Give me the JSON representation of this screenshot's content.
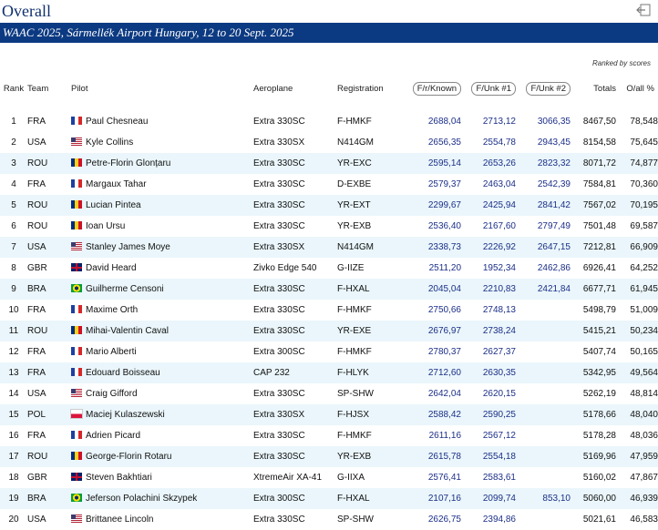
{
  "page": {
    "title": "Overall",
    "banner": "WAAC 2025, Sármellék Airport Hungary, 12 to 20 Sept. 2025",
    "ranked_note": "Ranked by scores"
  },
  "columns": {
    "rank": "Rank",
    "team": "Team",
    "pilot": "Pilot",
    "aeroplane": "Aeroplane",
    "registration": "Registration",
    "fknown": "F/r/Known",
    "funk1": "F/Unk #1",
    "funk2": "F/Unk #2",
    "totals": "Totals",
    "overall": "O/all %"
  },
  "rows": [
    {
      "rank": "1",
      "team": "FRA",
      "pilot": "Paul Chesneau",
      "aeroplane": "Extra 330SC",
      "registration": "F-HMKF",
      "fknown": "2688,04",
      "funk1": "2713,12",
      "funk2": "3066,35",
      "totals": "8467,50",
      "overall": "78,548"
    },
    {
      "rank": "2",
      "team": "USA",
      "pilot": "Kyle Collins",
      "aeroplane": "Extra 330SX",
      "registration": "N414GM",
      "fknown": "2656,35",
      "funk1": "2554,78",
      "funk2": "2943,45",
      "totals": "8154,58",
      "overall": "75,645"
    },
    {
      "rank": "3",
      "team": "ROU",
      "pilot": "Petre-Florin Glonțaru",
      "aeroplane": "Extra 330SC",
      "registration": "YR-EXC",
      "fknown": "2595,14",
      "funk1": "2653,26",
      "funk2": "2823,32",
      "totals": "8071,72",
      "overall": "74,877"
    },
    {
      "rank": "4",
      "team": "FRA",
      "pilot": "Margaux Tahar",
      "aeroplane": "Extra 330SC",
      "registration": "D-EXBE",
      "fknown": "2579,37",
      "funk1": "2463,04",
      "funk2": "2542,39",
      "totals": "7584,81",
      "overall": "70,360"
    },
    {
      "rank": "5",
      "team": "ROU",
      "pilot": "Lucian Pintea",
      "aeroplane": "Extra 330SC",
      "registration": "YR-EXT",
      "fknown": "2299,67",
      "funk1": "2425,94",
      "funk2": "2841,42",
      "totals": "7567,02",
      "overall": "70,195"
    },
    {
      "rank": "6",
      "team": "ROU",
      "pilot": "Ioan Ursu",
      "aeroplane": "Extra 330SC",
      "registration": "YR-EXB",
      "fknown": "2536,40",
      "funk1": "2167,60",
      "funk2": "2797,49",
      "totals": "7501,48",
      "overall": "69,587"
    },
    {
      "rank": "7",
      "team": "USA",
      "pilot": "Stanley James Moye",
      "aeroplane": "Extra 330SX",
      "registration": "N414GM",
      "fknown": "2338,73",
      "funk1": "2226,92",
      "funk2": "2647,15",
      "totals": "7212,81",
      "overall": "66,909"
    },
    {
      "rank": "8",
      "team": "GBR",
      "pilot": "David Heard",
      "aeroplane": "Zivko Edge 540",
      "registration": "G-IIZE",
      "fknown": "2511,20",
      "funk1": "1952,34",
      "funk2": "2462,86",
      "totals": "6926,41",
      "overall": "64,252"
    },
    {
      "rank": "9",
      "team": "BRA",
      "pilot": "Guilherme Censoni",
      "aeroplane": "Extra 330SC",
      "registration": "F-HXAL",
      "fknown": "2045,04",
      "funk1": "2210,83",
      "funk2": "2421,84",
      "totals": "6677,71",
      "overall": "61,945"
    },
    {
      "rank": "10",
      "team": "FRA",
      "pilot": "Maxime Orth",
      "aeroplane": "Extra 330SC",
      "registration": "F-HMKF",
      "fknown": "2750,66",
      "funk1": "2748,13",
      "funk2": "",
      "totals": "5498,79",
      "overall": "51,009"
    },
    {
      "rank": "11",
      "team": "ROU",
      "pilot": "Mihai-Valentin Caval",
      "aeroplane": "Extra 330SC",
      "registration": "YR-EXE",
      "fknown": "2676,97",
      "funk1": "2738,24",
      "funk2": "",
      "totals": "5415,21",
      "overall": "50,234"
    },
    {
      "rank": "12",
      "team": "FRA",
      "pilot": "Mario Alberti",
      "aeroplane": "Extra 300SC",
      "registration": "F-HMKF",
      "fknown": "2780,37",
      "funk1": "2627,37",
      "funk2": "",
      "totals": "5407,74",
      "overall": "50,165"
    },
    {
      "rank": "13",
      "team": "FRA",
      "pilot": "Edouard Boisseau",
      "aeroplane": "CAP 232",
      "registration": "F-HLYK",
      "fknown": "2712,60",
      "funk1": "2630,35",
      "funk2": "",
      "totals": "5342,95",
      "overall": "49,564"
    },
    {
      "rank": "14",
      "team": "USA",
      "pilot": "Craig Gifford",
      "aeroplane": "Extra 330SC",
      "registration": "SP-SHW",
      "fknown": "2642,04",
      "funk1": "2620,15",
      "funk2": "",
      "totals": "5262,19",
      "overall": "48,814"
    },
    {
      "rank": "15",
      "team": "POL",
      "pilot": "Maciej Kulaszewski",
      "aeroplane": "Extra 330SX",
      "registration": "F-HJSX",
      "fknown": "2588,42",
      "funk1": "2590,25",
      "funk2": "",
      "totals": "5178,66",
      "overall": "48,040"
    },
    {
      "rank": "16",
      "team": "FRA",
      "pilot": "Adrien Picard",
      "aeroplane": "Extra 330SC",
      "registration": "F-HMKF",
      "fknown": "2611,16",
      "funk1": "2567,12",
      "funk2": "",
      "totals": "5178,28",
      "overall": "48,036"
    },
    {
      "rank": "17",
      "team": "ROU",
      "pilot": "George-Florin Rotaru",
      "aeroplane": "Extra 330SC",
      "registration": "YR-EXB",
      "fknown": "2615,78",
      "funk1": "2554,18",
      "funk2": "",
      "totals": "5169,96",
      "overall": "47,959"
    },
    {
      "rank": "18",
      "team": "GBR",
      "pilot": "Steven Bakhtiari",
      "aeroplane": "XtremeAir XA-41",
      "registration": "G-IIXA",
      "fknown": "2576,41",
      "funk1": "2583,61",
      "funk2": "",
      "totals": "5160,02",
      "overall": "47,867"
    },
    {
      "rank": "19",
      "team": "BRA",
      "pilot": "Jeferson Polachini Skzypek",
      "aeroplane": "Extra 300SC",
      "registration": "F-HXAL",
      "fknown": "2107,16",
      "funk1": "2099,74",
      "funk2": "853,10",
      "totals": "5060,00",
      "overall": "46,939"
    },
    {
      "rank": "20",
      "team": "USA",
      "pilot": "Brittanee Lincoln",
      "aeroplane": "Extra 330SC",
      "registration": "SP-SHW",
      "fknown": "2626,75",
      "funk1": "2394,86",
      "funk2": "",
      "totals": "5021,61",
      "overall": "46,583"
    }
  ],
  "flags": {
    "FRA": [
      "#1f3fa0",
      "#ffffff",
      "#d62828"
    ],
    "USA": [
      "#b22234",
      "#ffffff",
      "#3c3b6e"
    ],
    "ROU": [
      "#002b7f",
      "#fcd116",
      "#ce1126"
    ],
    "GBR": [
      "#012169",
      "#ffffff",
      "#c8102e"
    ],
    "BRA": [
      "#009c3b",
      "#ffdf00",
      "#002776"
    ],
    "POL": [
      "#ffffff",
      "#dc143c"
    ]
  },
  "icons": {
    "export": "export-icon"
  }
}
